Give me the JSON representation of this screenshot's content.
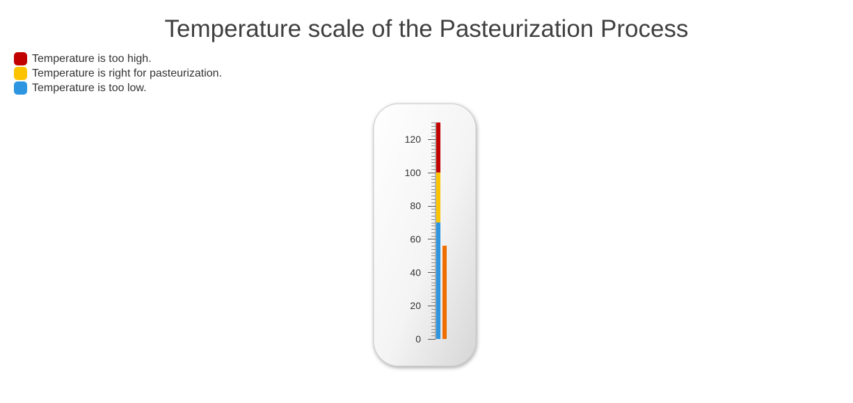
{
  "chart_data": {
    "type": "linear-gauge",
    "title": "Temperature scale of the Pasteurization Process",
    "scale": {
      "min": 0,
      "max": 130,
      "major_ticks": [
        "0",
        "20",
        "40",
        "60",
        "80",
        "100",
        "120"
      ],
      "major_values": [
        0,
        20,
        40,
        60,
        80,
        100,
        120
      ],
      "minor_step": 2
    },
    "ranges": [
      {
        "label": "Temperature is too low.",
        "from": 0,
        "to": 70,
        "color": "#2e95e0"
      },
      {
        "label": "Temperature is right for pasteurization.",
        "from": 70,
        "to": 100,
        "color": "#fcc400"
      },
      {
        "label": "Temperature is too high.",
        "from": 100,
        "to": 130,
        "color": "#c10000"
      }
    ],
    "legend": {
      "placement": "top-left",
      "items": [
        {
          "label": "Temperature is too high.",
          "color": "#c10000"
        },
        {
          "label": "Temperature is right for pasteurization.",
          "color": "#fcc400"
        },
        {
          "label": "Temperature is too low.",
          "color": "#2e95e0"
        }
      ]
    },
    "pointer": {
      "value": 56,
      "color": "#ee6e00"
    }
  }
}
